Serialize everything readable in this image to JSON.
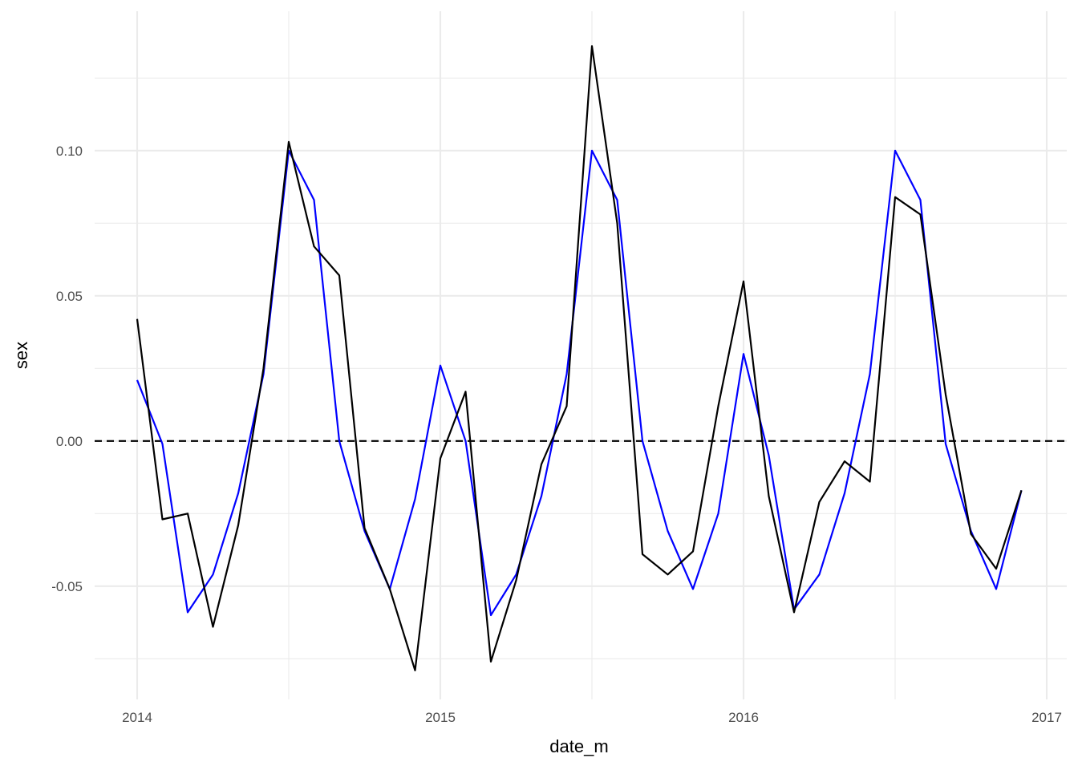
{
  "chart_data": {
    "type": "line",
    "title": "",
    "xlabel": "date_m",
    "ylabel": "sex",
    "x_ticks": [
      "2014",
      "2015",
      "2016",
      "2017"
    ],
    "y_ticks": [
      "0.10",
      "0.05",
      "0.00",
      "-0.05"
    ],
    "xlim": [
      "2013-10-15",
      "2017-01-31"
    ],
    "ylim": [
      -0.089,
      0.148
    ],
    "grid": true,
    "reference_line": {
      "y": 0,
      "style": "dashed",
      "color": "#000000"
    },
    "x": [
      "2014-01-01",
      "2014-02-01",
      "2014-03-01",
      "2014-04-01",
      "2014-05-01",
      "2014-06-01",
      "2014-07-01",
      "2014-08-01",
      "2014-09-01",
      "2014-10-01",
      "2014-11-01",
      "2014-12-01",
      "2015-01-01",
      "2015-02-01",
      "2015-03-01",
      "2015-04-01",
      "2015-05-01",
      "2015-06-01",
      "2015-07-01",
      "2015-08-01",
      "2015-09-01",
      "2015-10-01",
      "2015-11-01",
      "2015-12-01",
      "2016-01-01",
      "2016-02-01",
      "2016-03-01",
      "2016-04-01",
      "2016-05-01",
      "2016-06-01",
      "2016-07-01",
      "2016-08-01",
      "2016-09-01",
      "2016-10-01",
      "2016-11-01",
      "2016-12-01"
    ],
    "series": [
      {
        "color": "#0000ff",
        "values": [
          0.021,
          -0.001,
          -0.059,
          -0.046,
          -0.018,
          0.023,
          0.1,
          0.083,
          0.0,
          -0.031,
          -0.051,
          -0.02,
          0.026,
          0.0,
          -0.06,
          -0.046,
          -0.019,
          0.023,
          0.1,
          0.083,
          0.0,
          -0.031,
          -0.051,
          -0.025,
          0.03,
          -0.005,
          -0.058,
          -0.046,
          -0.018,
          0.023,
          0.1,
          0.083,
          -0.001,
          -0.031,
          -0.051,
          -0.017
        ]
      },
      {
        "color": "#000000",
        "values": [
          0.042,
          -0.027,
          -0.025,
          -0.064,
          -0.029,
          0.025,
          0.103,
          0.067,
          0.057,
          -0.03,
          -0.051,
          -0.079,
          -0.006,
          0.017,
          -0.076,
          -0.048,
          -0.008,
          0.012,
          0.136,
          0.075,
          -0.039,
          -0.046,
          -0.038,
          0.012,
          0.055,
          -0.019,
          -0.059,
          -0.021,
          -0.007,
          -0.014,
          0.084,
          0.078,
          0.016,
          -0.032,
          -0.044,
          -0.017
        ]
      }
    ]
  }
}
